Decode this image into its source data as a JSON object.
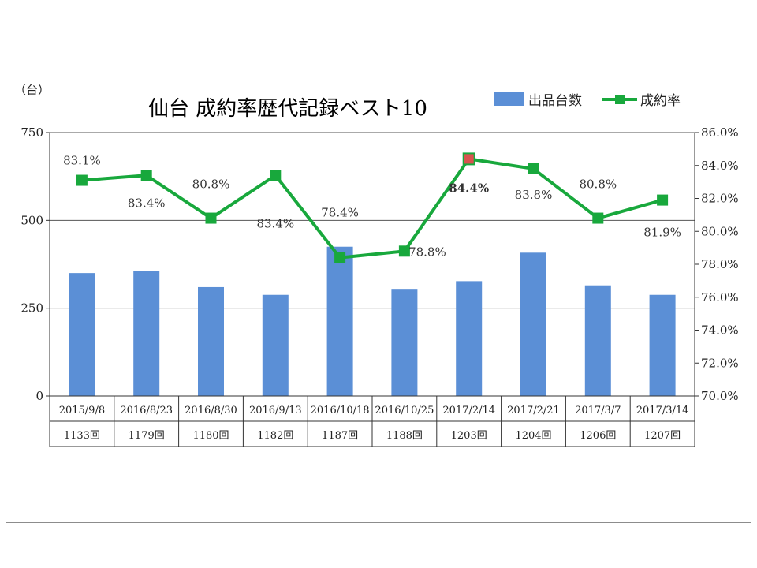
{
  "chart_data": {
    "type": "bar+line",
    "title": "仙台  成約率歴代記録ベスト10",
    "y_unit_label": "（台）",
    "categories": [
      "2015/9/8",
      "2016/8/23",
      "2016/8/30",
      "2016/9/13",
      "2016/10/18",
      "2016/10/25",
      "2017/2/14",
      "2017/2/21",
      "2017/3/7",
      "2017/3/14"
    ],
    "sessions": [
      "1133回",
      "1179回",
      "1180回",
      "1182回",
      "1187回",
      "1188回",
      "1203回",
      "1204回",
      "1206回",
      "1207回"
    ],
    "series": [
      {
        "name": "出品台数",
        "type": "bar",
        "axis": "left",
        "color": "#5b8fd6",
        "values": [
          350,
          355,
          310,
          288,
          425,
          305,
          327,
          408,
          315,
          288
        ]
      },
      {
        "name": "成約率",
        "type": "line",
        "axis": "right",
        "color": "#18a83c",
        "values": [
          83.1,
          83.4,
          80.8,
          83.4,
          78.4,
          78.8,
          84.4,
          83.8,
          80.8,
          81.9
        ],
        "labels": [
          "83.1%",
          "83.4%",
          "80.8%",
          "83.4%",
          "78.4%",
          "78.8%",
          "84.4%",
          "83.8%",
          "80.8%",
          "81.9%"
        ],
        "highlight_index": 6,
        "highlight_color": "#d9534f"
      }
    ],
    "y_left": {
      "min": 0,
      "max": 750,
      "ticks": [
        0,
        250,
        500,
        750
      ],
      "tick_labels": [
        "0",
        "250",
        "500",
        "750"
      ]
    },
    "y_right": {
      "min": 70,
      "max": 86,
      "ticks": [
        70,
        72,
        74,
        76,
        78,
        80,
        82,
        84,
        86
      ],
      "tick_labels": [
        "70.0%",
        "72.0%",
        "74.0%",
        "76.0%",
        "78.0%",
        "80.0%",
        "82.0%",
        "84.0%",
        "86.0%"
      ]
    },
    "grid": "horizontal",
    "legend_position": "top-right"
  }
}
